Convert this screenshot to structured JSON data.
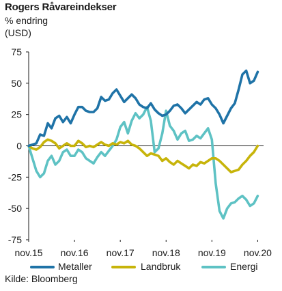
{
  "chart_data": {
    "type": "line",
    "title": "Rogers Råvareindekser",
    "subtitle": "% endring",
    "unit": "(USD)",
    "ylim": [
      -75,
      75
    ],
    "yticks": [
      75,
      50,
      25,
      0,
      -25,
      -50,
      -75
    ],
    "xlim": [
      0,
      61
    ],
    "xticks": [
      {
        "x": 0,
        "label": "nov.15"
      },
      {
        "x": 12,
        "label": "nov.16"
      },
      {
        "x": 24,
        "label": "nov.17"
      },
      {
        "x": 36,
        "label": "nov.18"
      },
      {
        "x": 48,
        "label": "nov.19"
      },
      {
        "x": 60,
        "label": "nov.20"
      }
    ],
    "grid": false,
    "legend": "bottom",
    "series": [
      {
        "name": "Metaller",
        "color": "#1f73a7",
        "values": [
          0,
          1,
          2,
          9,
          8,
          18,
          14,
          22,
          24,
          19,
          23,
          18,
          25,
          31,
          31,
          28,
          27,
          27,
          30,
          39,
          36,
          37,
          42,
          45,
          40,
          35,
          38,
          41,
          38,
          33,
          31,
          30,
          34,
          29,
          26,
          24,
          25,
          28,
          32,
          33,
          30,
          26,
          29,
          32,
          35,
          33,
          37,
          38,
          33,
          30,
          25,
          18,
          24,
          30,
          34,
          45,
          57,
          60,
          50,
          52,
          59
        ]
      },
      {
        "name": "Landbruk",
        "color": "#c7b40a",
        "values": [
          0,
          -2,
          -3,
          -1,
          3,
          5,
          4,
          2,
          -2,
          0,
          2,
          0,
          0,
          4,
          2,
          -1,
          0,
          -1,
          1,
          3,
          1,
          0,
          2,
          1,
          3,
          2,
          4,
          1,
          0,
          -2,
          -5,
          -8,
          -6,
          -7,
          -8,
          -12,
          -10,
          -13,
          -15,
          -12,
          -14,
          -16,
          -18,
          -15,
          -16,
          -13,
          -14,
          -12,
          -10,
          -10,
          -12,
          -15,
          -18,
          -21,
          -20,
          -19,
          -15,
          -12,
          -8,
          -5,
          0
        ]
      },
      {
        "name": "Energi",
        "color": "#5ec2c4",
        "values": [
          0,
          -10,
          -20,
          -25,
          -22,
          -12,
          -8,
          -15,
          -12,
          -5,
          -3,
          -8,
          -8,
          -3,
          -5,
          -10,
          -12,
          -14,
          -9,
          -5,
          -8,
          -4,
          0,
          5,
          15,
          19,
          10,
          20,
          26,
          22,
          25,
          31,
          20,
          -5,
          -2,
          10,
          28,
          16,
          12,
          5,
          10,
          12,
          4,
          5,
          8,
          6,
          10,
          14,
          5,
          -30,
          -52,
          -58,
          -50,
          -46,
          -45,
          -42,
          -40,
          -43,
          -48,
          -46,
          -40
        ]
      }
    ],
    "source": "Kilde: Bloomberg"
  }
}
